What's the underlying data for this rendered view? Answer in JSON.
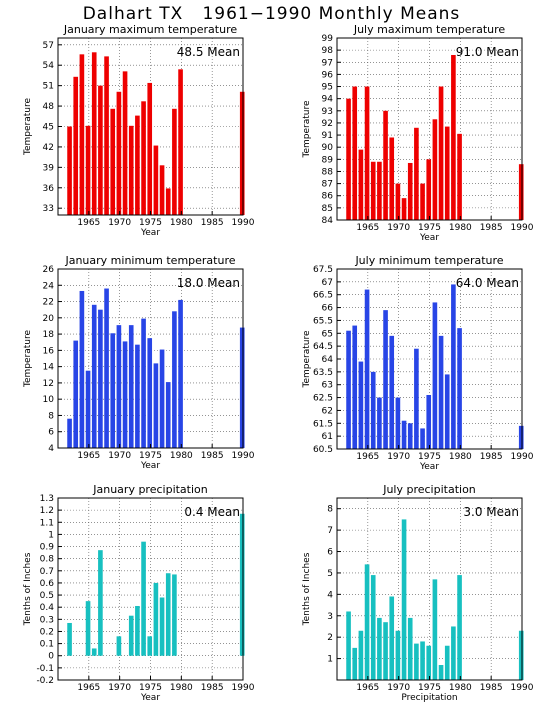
{
  "page": {
    "title": "Dalhart TX   1961−1990 Monthly Means"
  },
  "colors": {
    "red": "#ee0000",
    "blue": "#2845e6",
    "cyan": "#17c0c0",
    "grid": "#555555"
  },
  "chart_data": [
    {
      "type": "bar",
      "title": "January maximum temperature",
      "mean_label": "48.5  Mean",
      "xlabel": "Year",
      "ylabel": "Temperature",
      "color": "red",
      "xlim": [
        1960,
        1990
      ],
      "xticks": [
        1965,
        1970,
        1975,
        1980,
        1985,
        1990
      ],
      "ylim": [
        32,
        58
      ],
      "yticks": [
        33,
        36,
        39,
        42,
        45,
        48,
        51,
        54,
        57
      ],
      "x": [
        1962,
        1963,
        1964,
        1965,
        1966,
        1967,
        1968,
        1969,
        1970,
        1971,
        1972,
        1973,
        1974,
        1975,
        1976,
        1977,
        1978,
        1979,
        1980,
        1981,
        1990
      ],
      "values": [
        45,
        52.3,
        55.6,
        45.1,
        55.9,
        51,
        55.3,
        47.6,
        50.1,
        53.1,
        45.1,
        46.6,
        48.7,
        51.4,
        42.2,
        39.3,
        35.9,
        47.6,
        53.4,
        32,
        50.1
      ]
    },
    {
      "type": "bar",
      "title": "July maximum temperature",
      "mean_label": "91.0  Mean",
      "xlabel": "Year",
      "ylabel": "Temperature",
      "color": "red",
      "xlim": [
        1960,
        1990
      ],
      "xticks": [
        1965,
        1970,
        1975,
        1980,
        1985,
        1990
      ],
      "ylim": [
        84,
        99
      ],
      "yticks": [
        84,
        85,
        86,
        87,
        88,
        89,
        90,
        91,
        92,
        93,
        94,
        95,
        96,
        97,
        98,
        99
      ],
      "x": [
        1962,
        1963,
        1964,
        1965,
        1966,
        1967,
        1968,
        1969,
        1970,
        1971,
        1972,
        1973,
        1974,
        1975,
        1976,
        1977,
        1978,
        1979,
        1980,
        1981,
        1990
      ],
      "values": [
        94,
        95,
        89.8,
        95,
        88.8,
        88.8,
        93,
        90.8,
        87,
        85.8,
        88.7,
        91.6,
        87,
        89,
        92.3,
        95,
        91.7,
        97.6,
        91.1,
        84,
        88.6
      ]
    },
    {
      "type": "bar",
      "title": "January minimum temperature",
      "mean_label": "18.0  Mean",
      "xlabel": "Year",
      "ylabel": "Temperature",
      "color": "blue",
      "xlim": [
        1960,
        1990
      ],
      "xticks": [
        1965,
        1970,
        1975,
        1980,
        1985,
        1990
      ],
      "ylim": [
        4,
        26
      ],
      "yticks": [
        4,
        6,
        8,
        10,
        12,
        14,
        16,
        18,
        20,
        22,
        24,
        26
      ],
      "x": [
        1962,
        1963,
        1964,
        1965,
        1966,
        1967,
        1968,
        1969,
        1970,
        1971,
        1972,
        1973,
        1974,
        1975,
        1976,
        1977,
        1978,
        1979,
        1980,
        1981,
        1990
      ],
      "values": [
        7.6,
        17.2,
        23.3,
        13.5,
        21.6,
        21,
        23.6,
        18.1,
        19.1,
        17.1,
        19.1,
        16.7,
        19.9,
        17.5,
        14.4,
        16.1,
        12.1,
        20.8,
        22.2,
        4,
        18.8
      ]
    },
    {
      "type": "bar",
      "title": "July minimum temperature",
      "mean_label": "64.0  Mean",
      "xlabel": "Year",
      "ylabel": "Temperature",
      "color": "blue",
      "xlim": [
        1960,
        1990
      ],
      "xticks": [
        1965,
        1970,
        1975,
        1980,
        1985,
        1990
      ],
      "ylim": [
        60.5,
        67.5
      ],
      "yticks": [
        60.5,
        61,
        61.5,
        62,
        62.5,
        63,
        63.5,
        64,
        64.5,
        65,
        65.5,
        66,
        66.5,
        67,
        67.5
      ],
      "x": [
        1962,
        1963,
        1964,
        1965,
        1966,
        1967,
        1968,
        1969,
        1970,
        1971,
        1972,
        1973,
        1974,
        1975,
        1976,
        1977,
        1978,
        1979,
        1980,
        1981,
        1990
      ],
      "values": [
        65.1,
        65.3,
        63.9,
        66.7,
        63.5,
        62.5,
        65.9,
        64.9,
        62.5,
        61.6,
        61.5,
        64.4,
        61.3,
        62.6,
        66.2,
        64.9,
        63.4,
        66.9,
        65.2,
        60.5,
        61.4
      ]
    },
    {
      "type": "bar",
      "title": "January precipitation",
      "mean_label": "0.4  Mean",
      "xlabel": "Year",
      "ylabel": "Tenths of Inches",
      "color": "cyan",
      "xlim": [
        1960,
        1990
      ],
      "xticks": [
        1965,
        1970,
        1975,
        1980,
        1985,
        1990
      ],
      "ylim": [
        -0.2,
        1.3
      ],
      "yticks": [
        -0.2,
        -0.1,
        0,
        0.1,
        0.2,
        0.3,
        0.4,
        0.5,
        0.6,
        0.7,
        0.8,
        0.9,
        1,
        1.1,
        1.2,
        1.3
      ],
      "x": [
        1962,
        1963,
        1964,
        1965,
        1966,
        1967,
        1968,
        1969,
        1970,
        1971,
        1972,
        1973,
        1974,
        1975,
        1976,
        1977,
        1978,
        1979,
        1980,
        1981,
        1990
      ],
      "values": [
        0.27,
        0,
        0,
        0.45,
        0.06,
        0.87,
        0,
        0,
        0.16,
        0,
        0.33,
        0.41,
        0.94,
        0.16,
        0.6,
        0.48,
        0.68,
        0.67,
        0,
        0,
        1.17
      ]
    },
    {
      "type": "bar",
      "title": "July precipitation",
      "mean_label": "3.0  Mean",
      "xlabel": "Precipitation",
      "ylabel": "Tenths of Inches",
      "color": "cyan",
      "xlim": [
        1960,
        1990
      ],
      "xticks": [
        1965,
        1970,
        1975,
        1980,
        1985,
        1990
      ],
      "ylim": [
        0,
        8.5
      ],
      "yticks": [
        1,
        2,
        3,
        4,
        5,
        6,
        7,
        8
      ],
      "x": [
        1962,
        1963,
        1964,
        1965,
        1966,
        1967,
        1968,
        1969,
        1970,
        1971,
        1972,
        1973,
        1974,
        1975,
        1976,
        1977,
        1978,
        1979,
        1980,
        1981,
        1990
      ],
      "values": [
        3.2,
        1.5,
        2.3,
        5.4,
        4.9,
        2.9,
        2.7,
        3.9,
        2.3,
        7.5,
        2.9,
        1.7,
        1.8,
        1.6,
        4.7,
        0.7,
        1.6,
        2.5,
        4.9,
        0,
        2.3
      ]
    }
  ]
}
